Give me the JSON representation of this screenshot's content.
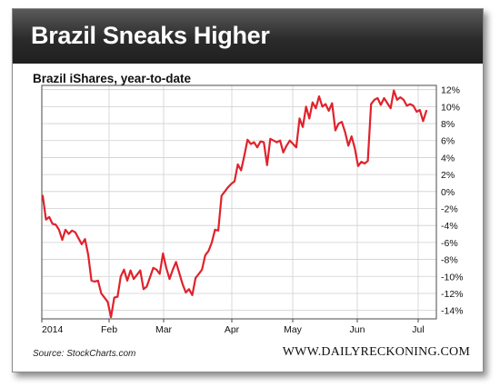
{
  "header": {
    "title": "Brazil Sneaks Higher"
  },
  "footer": {
    "source": "Source: StockCharts.com",
    "site": "WWW.DAILYRECKONING.COM"
  },
  "colors": {
    "line": "#e0222b",
    "banner": "#2b2b2b",
    "grid": "#cfcfcf"
  },
  "chart_data": {
    "type": "line",
    "title": "Brazil iShares, year-to-date",
    "xlabel": "",
    "ylabel": "",
    "ylim": [
      -15,
      12.5
    ],
    "grid": true,
    "x_tick_labels": [
      "2014",
      "Feb",
      "Mar",
      "Apr",
      "May",
      "Jun",
      "Jul"
    ],
    "y_tick_labels": [
      "12%",
      "10%",
      "8%",
      "6%",
      "4%",
      "2%",
      "0%",
      "-2%",
      "-4%",
      "-6%",
      "-8%",
      "-10%",
      "-12%",
      "-14%"
    ],
    "y_tick_values": [
      12,
      10,
      8,
      6,
      4,
      2,
      0,
      -2,
      -4,
      -6,
      -8,
      -10,
      -12,
      -14
    ],
    "series": [
      {
        "values": [
          -0.5,
          -3.3,
          -3.0,
          -3.8,
          -3.9,
          -4.5,
          -5.7,
          -4.5,
          -5.0,
          -4.6,
          -4.8,
          -5.5,
          -6.2,
          -5.6,
          -7.5,
          -10.5,
          -10.6,
          -10.5,
          -12.0,
          -12.5,
          -13.0,
          -14.8,
          -12.5,
          -12.4,
          -10.0,
          -9.2,
          -10.5,
          -9.3,
          -10.3,
          -9.8,
          -9.3,
          -11.5,
          -11.2,
          -10.1,
          -9.0,
          -9.2,
          -9.7,
          -7.3,
          -9.0,
          -10.3,
          -9.2,
          -8.3,
          -9.6,
          -10.9,
          -11.9,
          -11.5,
          -12.2,
          -10.2,
          -9.7,
          -9.2,
          -7.5,
          -7.0,
          -6.0,
          -4.5,
          -4.6,
          -0.5,
          0.0,
          0.5,
          0.9,
          1.2,
          3.2,
          2.5,
          4.2,
          6.1,
          5.6,
          5.8,
          5.2,
          5.9,
          5.8,
          3.1,
          6.2,
          6.0,
          5.8,
          6.0,
          4.6,
          5.4,
          6.0,
          5.6,
          5.2,
          8.6,
          7.6,
          10.0,
          8.6,
          10.5,
          9.8,
          11.2,
          10.0,
          10.3,
          9.5,
          10.4,
          7.2,
          8.0,
          8.2,
          7.0,
          5.4,
          6.5,
          5.1,
          3.0,
          3.5,
          3.3,
          3.6,
          10.3,
          10.8,
          11.0,
          10.2,
          11.0,
          10.4,
          9.8,
          11.9,
          10.8,
          11.1,
          10.8,
          10.1,
          10.3,
          10.1,
          9.4,
          9.6,
          8.3,
          9.5
        ]
      }
    ]
  }
}
